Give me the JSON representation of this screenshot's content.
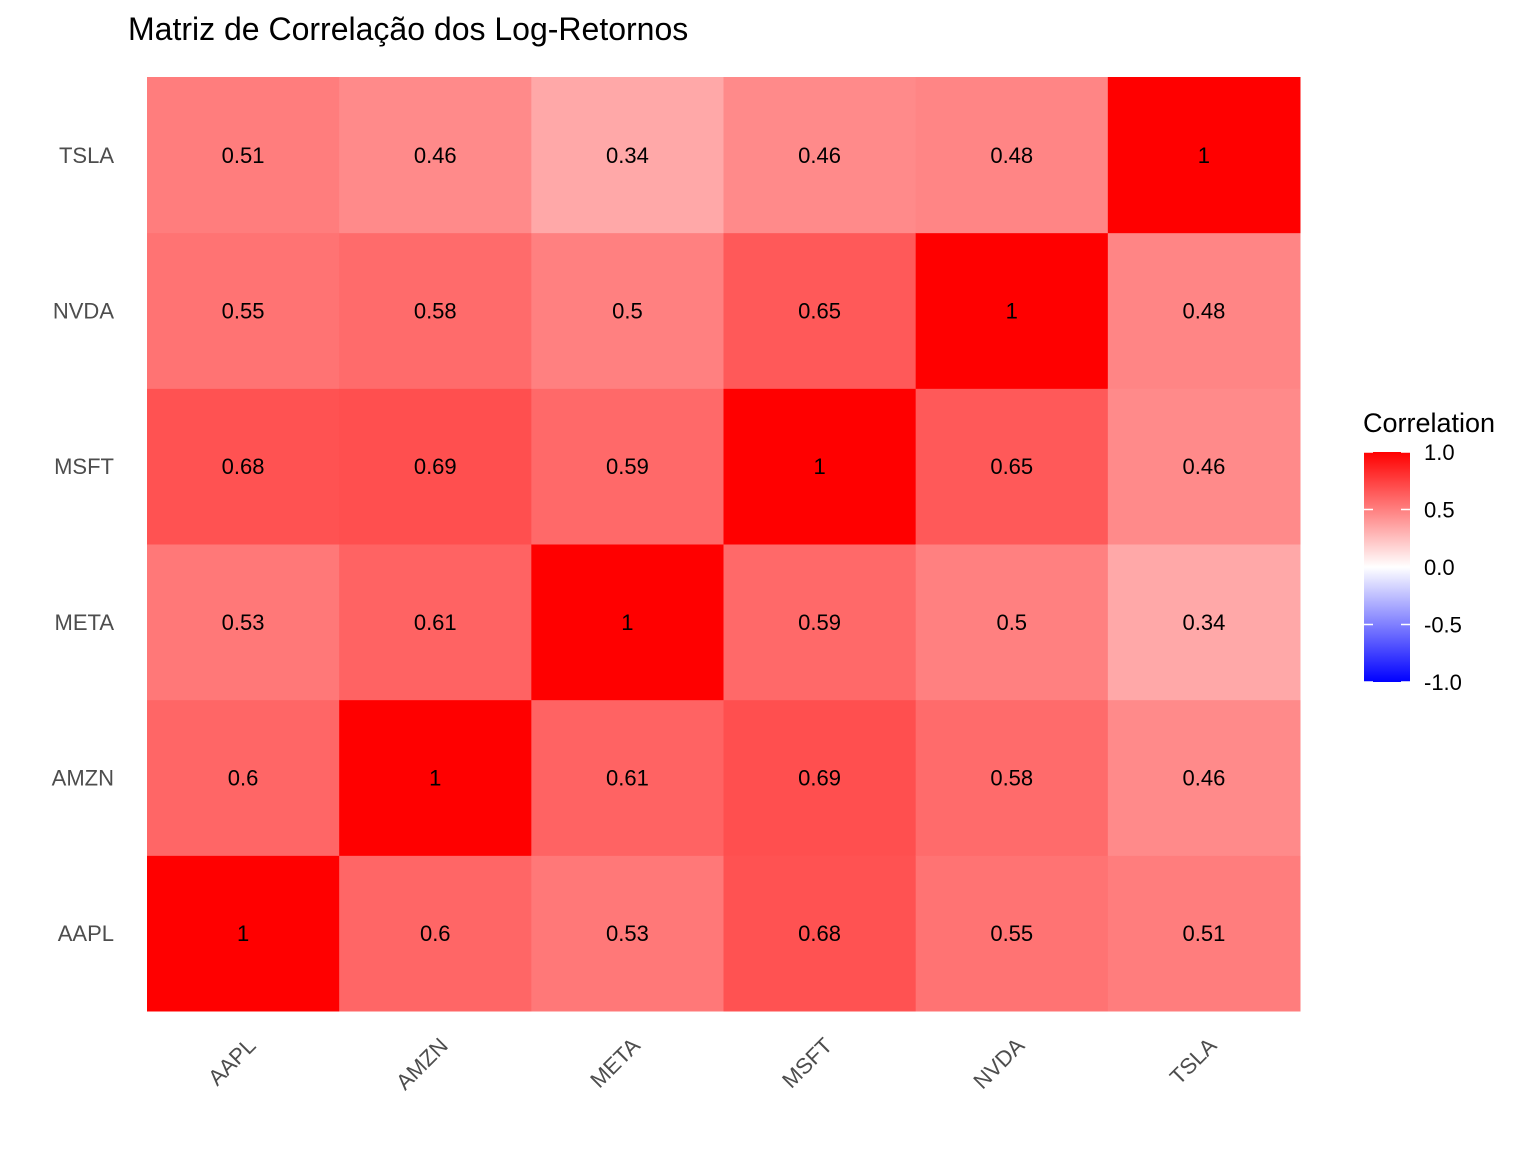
{
  "chart_data": {
    "type": "heatmap",
    "title": "Matriz de Correlação dos Log-Retornos",
    "x_categories": [
      "AAPL",
      "AMZN",
      "META",
      "MSFT",
      "NVDA",
      "TSLA"
    ],
    "y_categories": [
      "AAPL",
      "AMZN",
      "META",
      "MSFT",
      "NVDA",
      "TSLA"
    ],
    "values": [
      [
        1,
        0.6,
        0.53,
        0.68,
        0.55,
        0.51
      ],
      [
        0.6,
        1,
        0.61,
        0.69,
        0.58,
        0.46
      ],
      [
        0.53,
        0.61,
        1,
        0.59,
        0.5,
        0.34
      ],
      [
        0.68,
        0.69,
        0.59,
        1,
        0.65,
        0.46
      ],
      [
        0.55,
        0.58,
        0.5,
        0.65,
        1,
        0.48
      ],
      [
        0.51,
        0.46,
        0.34,
        0.46,
        0.48,
        1
      ]
    ],
    "value_labels": [
      [
        "1",
        "0.6",
        "0.53",
        "0.68",
        "0.55",
        "0.51"
      ],
      [
        "0.6",
        "1",
        "0.61",
        "0.69",
        "0.58",
        "0.46"
      ],
      [
        "0.53",
        "0.61",
        "1",
        "0.59",
        "0.5",
        "0.34"
      ],
      [
        "0.68",
        "0.69",
        "0.59",
        "1",
        "0.65",
        "0.46"
      ],
      [
        "0.55",
        "0.58",
        "0.5",
        "0.65",
        "1",
        "0.48"
      ],
      [
        "0.51",
        "0.46",
        "0.34",
        "0.46",
        "0.48",
        "1"
      ]
    ],
    "legend": {
      "title": "Correlation",
      "position": "right",
      "range": [
        -1,
        1
      ],
      "ticks": [
        1.0,
        0.5,
        0.0,
        -0.5,
        -1.0
      ],
      "tick_labels": [
        "1.0",
        "0.5",
        "0.0",
        "-0.5",
        "-1.0"
      ],
      "low_color": "#0000ff",
      "mid_color": "#ffffff",
      "high_color": "#ff0000"
    },
    "x_tick_rotation_deg": 45,
    "grid": false
  }
}
